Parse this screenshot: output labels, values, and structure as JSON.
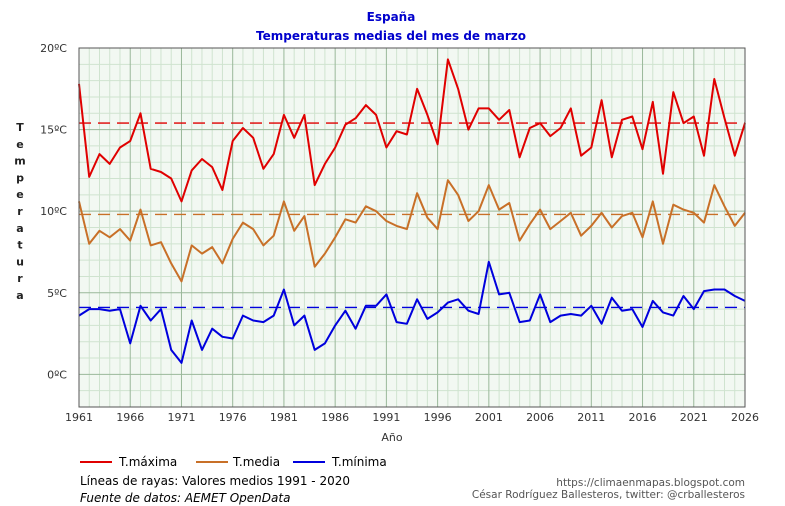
{
  "chart_data": {
    "type": "line",
    "title": "España",
    "subtitle": "Temperaturas medias del mes de marzo",
    "xlabel": "Año",
    "ylabel": "Temperatura",
    "xlim": [
      1961,
      2026
    ],
    "ylim": [
      -2,
      20
    ],
    "x_ticks": [
      1961,
      1966,
      1971,
      1976,
      1981,
      1986,
      1991,
      1996,
      2001,
      2006,
      2011,
      2016,
      2021,
      2026
    ],
    "y_ticks": [
      {
        "value": 0,
        "label": "0ºC"
      },
      {
        "value": 5,
        "label": "5ºC"
      },
      {
        "value": 10,
        "label": "10ºC"
      },
      {
        "value": 15,
        "label": "15ºC"
      },
      {
        "value": 20,
        "label": "20ºC"
      }
    ],
    "start_year": 1961,
    "series": [
      {
        "name": "T.máxima",
        "color": "#e00000",
        "mean_1991_2020": 15.4,
        "values": [
          17.8,
          12.1,
          13.5,
          12.9,
          13.9,
          14.3,
          16.0,
          12.6,
          12.4,
          12.0,
          10.6,
          12.5,
          13.2,
          12.7,
          11.3,
          14.3,
          15.1,
          14.5,
          12.6,
          13.5,
          15.9,
          14.5,
          15.9,
          11.6,
          12.9,
          13.9,
          15.3,
          15.7,
          16.5,
          15.9,
          13.9,
          14.9,
          14.7,
          17.5,
          15.9,
          14.1,
          19.3,
          17.5,
          15.0,
          16.3,
          16.3,
          15.6,
          16.2,
          13.3,
          15.1,
          15.4,
          14.6,
          15.1,
          16.3,
          13.4,
          13.9,
          16.8,
          13.3,
          15.6,
          15.8,
          13.8,
          16.7,
          12.3,
          17.3,
          15.4,
          15.8,
          13.4,
          18.1,
          15.7,
          13.4,
          15.4
        ]
      },
      {
        "name": "T.media",
        "color": "#c87028",
        "mean_1991_2020": 9.8,
        "values": [
          10.6,
          8.0,
          8.8,
          8.4,
          8.9,
          8.2,
          10.1,
          7.9,
          8.1,
          6.8,
          5.7,
          7.9,
          7.4,
          7.8,
          6.8,
          8.3,
          9.3,
          8.9,
          7.9,
          8.5,
          10.6,
          8.8,
          9.7,
          6.6,
          7.4,
          8.4,
          9.5,
          9.3,
          10.3,
          10.0,
          9.4,
          9.1,
          8.9,
          11.1,
          9.6,
          8.9,
          11.9,
          11.0,
          9.4,
          10.0,
          11.6,
          10.1,
          10.5,
          8.2,
          9.2,
          10.1,
          8.9,
          9.4,
          9.9,
          8.5,
          9.1,
          9.9,
          9.0,
          9.7,
          9.9,
          8.4,
          10.6,
          8.0,
          10.4,
          10.1,
          9.9,
          9.3,
          11.6,
          10.3,
          9.1,
          9.9
        ]
      },
      {
        "name": "T.mínima",
        "color": "#0000dd",
        "mean_1991_2020": 4.1,
        "values": [
          3.6,
          4.0,
          4.0,
          3.9,
          4.0,
          1.9,
          4.2,
          3.3,
          4.0,
          1.5,
          0.7,
          3.3,
          1.5,
          2.8,
          2.3,
          2.2,
          3.6,
          3.3,
          3.2,
          3.6,
          5.2,
          3.0,
          3.6,
          1.5,
          1.9,
          3.0,
          3.9,
          2.8,
          4.2,
          4.2,
          4.9,
          3.2,
          3.1,
          4.6,
          3.4,
          3.8,
          4.4,
          4.6,
          3.9,
          3.7,
          6.9,
          4.9,
          5.0,
          3.2,
          3.3,
          4.9,
          3.2,
          3.6,
          3.7,
          3.6,
          4.2,
          3.1,
          4.7,
          3.9,
          4.0,
          2.9,
          4.5,
          3.8,
          3.6,
          4.8,
          4.0,
          5.1,
          5.2,
          5.2,
          4.8,
          4.5
        ]
      }
    ]
  },
  "legend": {
    "items": [
      "T.máxima",
      "T.media",
      "T.mínima"
    ],
    "note": "Líneas de rayas: Valores medios 1991 - 2020",
    "source": "Fuente de datos: AEMET OpenData"
  },
  "credits": {
    "url": "https://climaenmapas.blogspot.com",
    "author": "César Rodríguez Ballesteros, twitter: @crballesteros"
  },
  "colors": {
    "plot_background": "#f2f8f2",
    "grid_major": "#9ab89a",
    "grid_minor": "#cfe3cf"
  }
}
